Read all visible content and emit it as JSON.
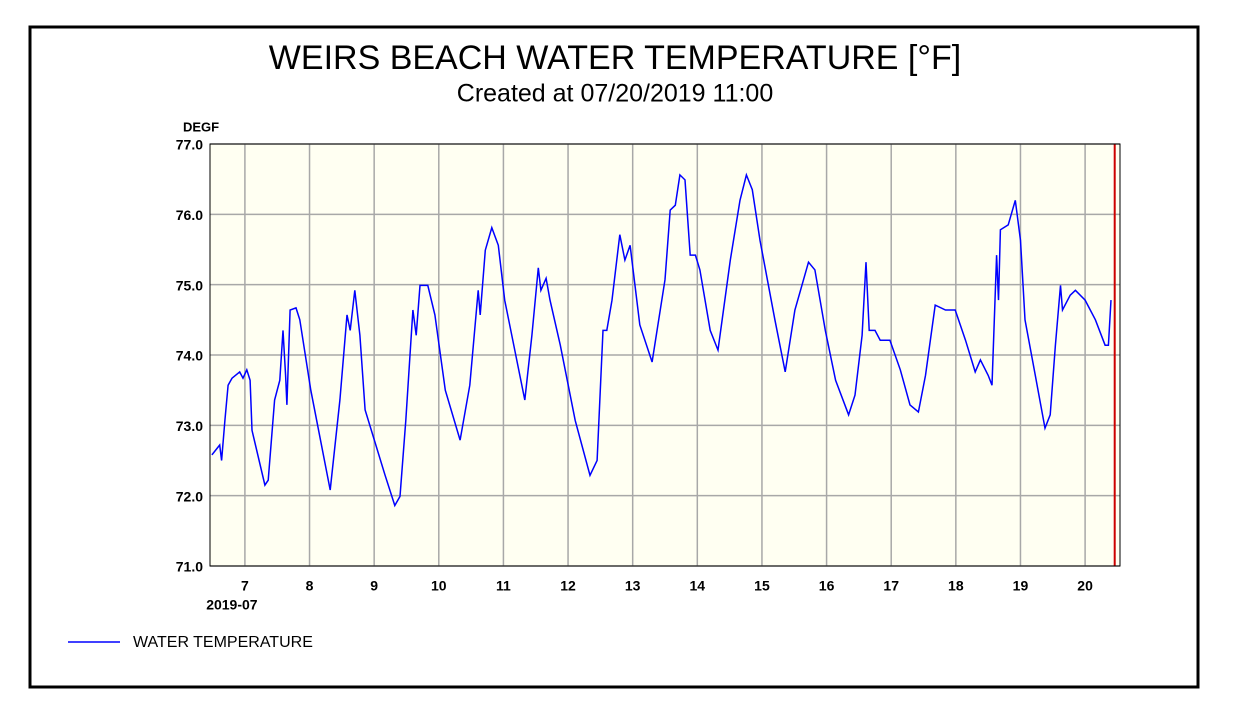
{
  "chart_data": {
    "type": "line",
    "title": "WEIRS BEACH WATER TEMPERATURE [°F]",
    "subtitle": "Created at 07/20/2019 11:00",
    "y_label": "DEGF",
    "x_sublabel": "2019-07",
    "x": [
      6.49,
      6.61,
      6.64,
      6.69,
      6.74,
      6.8,
      6.92,
      6.97,
      7.03,
      7.08,
      7.11,
      7.31,
      7.36,
      7.46,
      7.54,
      7.59,
      7.63,
      7.65,
      7.7,
      7.79,
      7.85,
      8.02,
      8.32,
      8.47,
      8.58,
      8.63,
      8.7,
      8.78,
      8.86,
      9.17,
      9.32,
      9.4,
      9.49,
      9.6,
      9.65,
      9.71,
      9.83,
      9.94,
      10.1,
      10.33,
      10.48,
      10.61,
      10.64,
      10.72,
      10.82,
      10.92,
      11.02,
      11.33,
      11.44,
      11.54,
      11.58,
      11.66,
      11.72,
      11.88,
      12.11,
      12.34,
      12.45,
      12.54,
      12.6,
      12.68,
      12.8,
      12.88,
      12.96,
      13.11,
      13.3,
      13.5,
      13.58,
      13.66,
      13.73,
      13.81,
      13.89,
      13.97,
      14.04,
      14.2,
      14.32,
      14.51,
      14.66,
      14.76,
      14.85,
      14.97,
      15.2,
      15.36,
      15.51,
      15.72,
      15.82,
      15.98,
      16.14,
      16.34,
      16.44,
      16.55,
      16.61,
      16.66,
      16.75,
      16.83,
      16.98,
      17.14,
      17.29,
      17.42,
      17.53,
      17.68,
      17.84,
      17.99,
      18.15,
      18.3,
      18.38,
      18.5,
      18.56,
      18.63,
      18.66,
      18.69,
      18.81,
      18.92,
      19.0,
      19.07,
      19.23,
      19.38,
      19.46,
      19.54,
      19.62,
      19.65,
      19.77,
      19.85,
      20.0,
      20.16,
      20.31,
      20.36,
      20.4
    ],
    "series": [
      {
        "name": "WATER TEMPERATURE",
        "color": "#0000ff",
        "values": [
          72.58,
          72.72,
          72.5,
          73.07,
          73.57,
          73.67,
          73.76,
          73.67,
          73.79,
          73.64,
          72.93,
          72.15,
          72.22,
          73.36,
          73.64,
          74.35,
          73.71,
          73.29,
          74.64,
          74.67,
          74.5,
          73.5,
          72.08,
          73.36,
          74.57,
          74.35,
          74.92,
          74.28,
          73.22,
          72.29,
          71.86,
          71.99,
          73.07,
          74.64,
          74.28,
          74.99,
          74.99,
          74.57,
          73.5,
          72.79,
          73.57,
          74.92,
          74.57,
          75.49,
          75.81,
          75.56,
          74.78,
          73.36,
          74.28,
          75.24,
          74.92,
          75.09,
          74.78,
          74.14,
          73.07,
          72.29,
          72.5,
          74.35,
          74.35,
          74.78,
          75.71,
          75.35,
          75.56,
          74.43,
          73.9,
          75.07,
          76.06,
          76.13,
          76.56,
          76.49,
          75.42,
          75.42,
          75.21,
          74.35,
          74.07,
          75.35,
          76.2,
          76.56,
          76.35,
          75.63,
          74.5,
          73.76,
          74.64,
          75.32,
          75.21,
          74.35,
          73.64,
          73.15,
          73.43,
          74.28,
          75.32,
          74.35,
          74.35,
          74.21,
          74.21,
          73.79,
          73.29,
          73.19,
          73.71,
          74.71,
          74.64,
          74.64,
          74.21,
          73.76,
          73.93,
          73.71,
          73.57,
          75.42,
          74.78,
          75.78,
          75.85,
          76.2,
          75.63,
          74.5,
          73.71,
          72.96,
          73.15,
          74.14,
          74.99,
          74.64,
          74.85,
          74.92,
          74.78,
          74.5,
          74.14,
          74.14,
          74.78
        ]
      }
    ],
    "xlim": [
      6.46,
      20.54
    ],
    "xticks": [
      7,
      8,
      9,
      10,
      11,
      12,
      13,
      14,
      15,
      16,
      17,
      18,
      19,
      20
    ],
    "ylim": [
      71,
      77
    ],
    "yticks": [
      {
        "value": 71,
        "label": "71.0"
      },
      {
        "value": 72,
        "label": "72.0"
      },
      {
        "value": 73,
        "label": "73.0"
      },
      {
        "value": 74,
        "label": "74.0"
      },
      {
        "value": 75,
        "label": "75.0"
      },
      {
        "value": 76,
        "label": "76.0"
      },
      {
        "value": 77,
        "label": "77.0"
      }
    ],
    "grid": true,
    "marker": {
      "x": 20.458,
      "color": "#cc0000"
    }
  }
}
